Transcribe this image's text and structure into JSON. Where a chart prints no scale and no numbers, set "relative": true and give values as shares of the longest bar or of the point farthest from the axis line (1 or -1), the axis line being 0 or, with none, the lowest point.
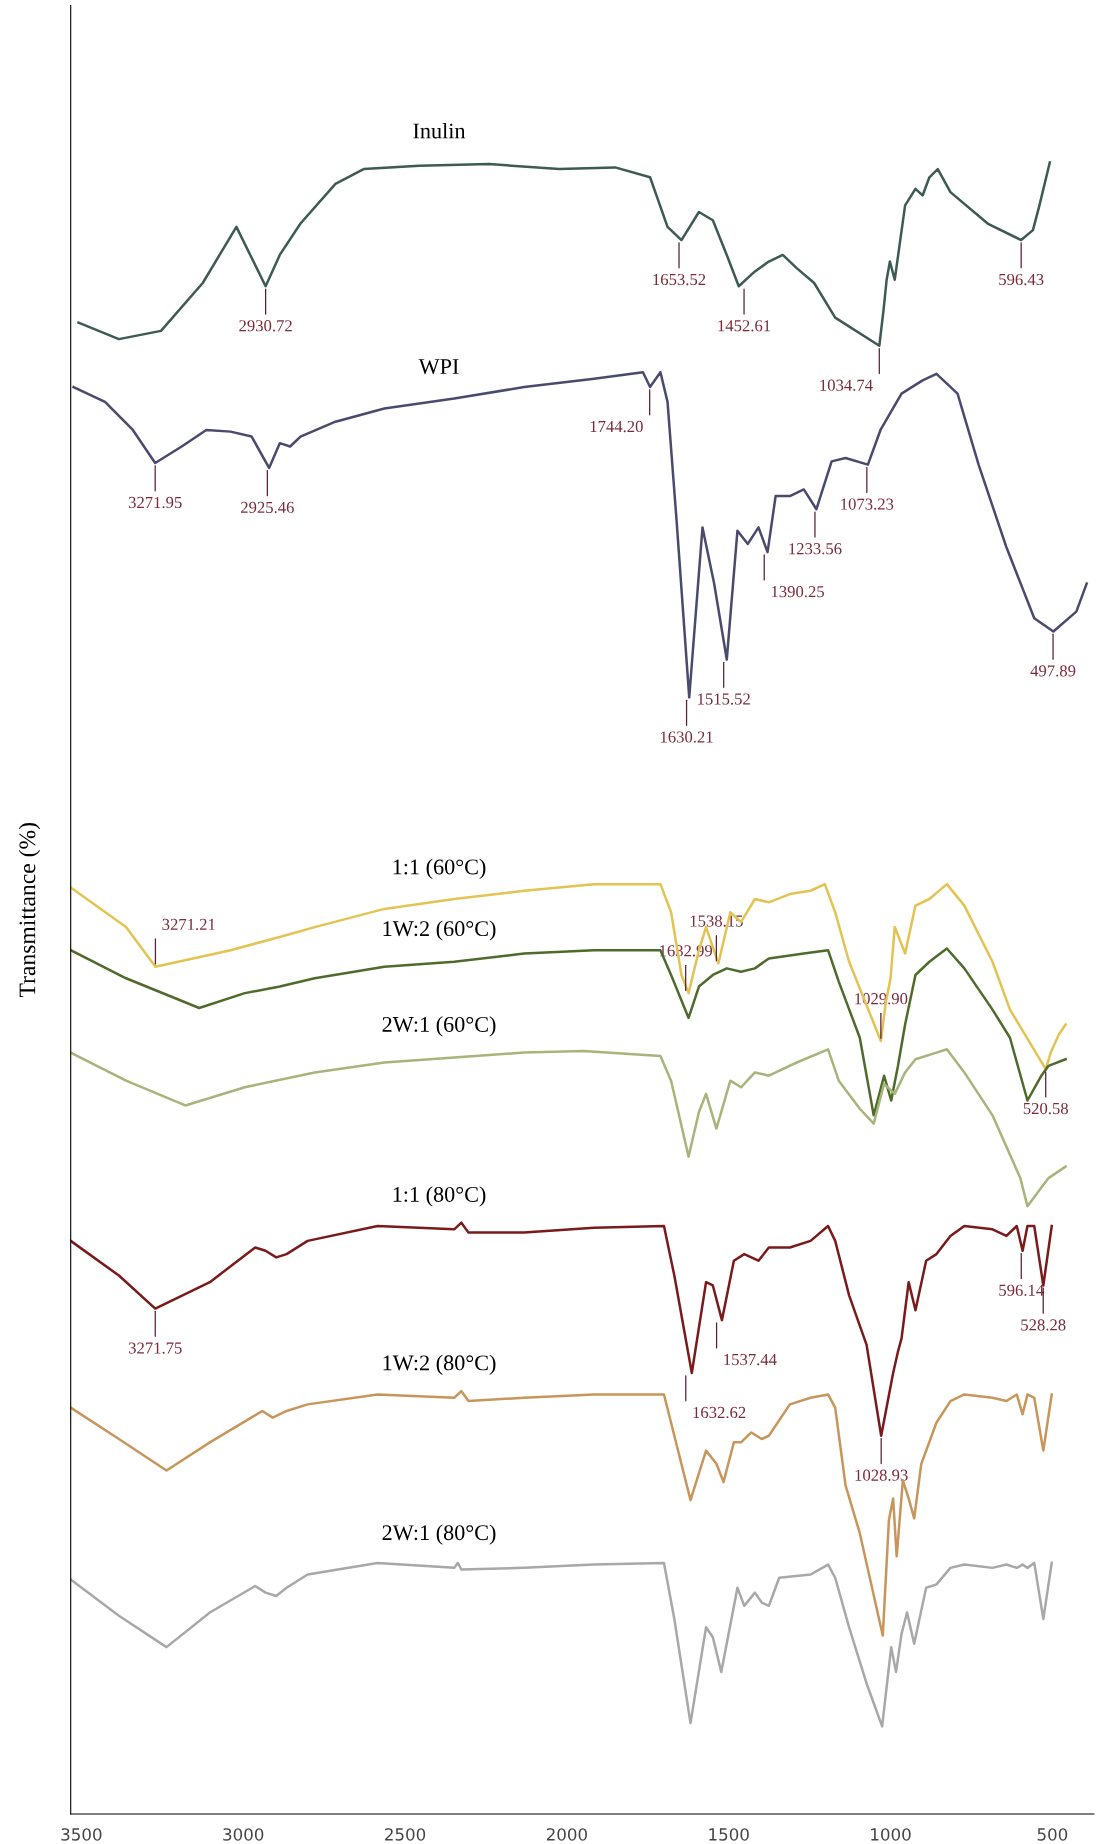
{
  "chart_data": {
    "type": "line",
    "relative": true,
    "ylabel": "Transmittance (%)",
    "xlim": [
      3533,
      372
    ],
    "xticks": [
      3500,
      3000,
      2500,
      2000,
      1500,
      1000,
      500
    ],
    "series": [
      {
        "name": "Inulin",
        "color": "#3d5a55",
        "x": [
          3509,
          3384,
          3254,
          3125,
          3021,
          2930.72,
          2887,
          2823,
          2715,
          2628,
          2456,
          2240,
          2024,
          1851,
          1743,
          1689,
          1646,
          1592,
          1549,
          1506,
          1469,
          1419,
          1376,
          1333,
          1290,
          1236,
          1171,
          1034.74,
          1022,
          1012,
          1002,
          987,
          955,
          923,
          901,
          880,
          854,
          815,
          700,
          596.43,
          560,
          540,
          508
        ],
        "values": [
          0.903,
          0.893,
          0.898,
          0.927,
          0.961,
          0.925,
          0.944,
          0.963,
          0.987,
          0.996,
          0.998,
          0.999,
          0.996,
          0.997,
          0.991,
          0.961,
          0.953,
          0.97,
          0.965,
          0.944,
          0.925,
          0.934,
          0.94,
          0.944,
          0.936,
          0.927,
          0.906,
          0.889,
          0.91,
          0.929,
          0.94,
          0.929,
          0.974,
          0.984,
          0.98,
          0.991,
          0.996,
          0.982,
          0.963,
          0.953,
          0.959,
          0.974,
          1.0
        ]
      },
      {
        "name": "WPI",
        "color": "#4a4a6e",
        "x": [
          3524,
          3427,
          3341,
          3272,
          3190,
          3114,
          3039,
          2974,
          2920,
          2887,
          2855,
          2823,
          2715,
          2564,
          2348,
          2132,
          1916,
          1765,
          1743,
          1711,
          1689,
          1661,
          1622,
          1581,
          1545,
          1506,
          1473,
          1441,
          1408,
          1380,
          1355,
          1311,
          1268,
          1229,
          1182,
          1139,
          1070,
          1031,
          966,
          901,
          858,
          793,
          728,
          642,
          556,
          497,
          426,
          394
        ],
        "values": [
          0.864,
          0.855,
          0.838,
          0.818,
          0.828,
          0.838,
          0.837,
          0.834,
          0.815,
          0.83,
          0.828,
          0.834,
          0.843,
          0.851,
          0.857,
          0.864,
          0.869,
          0.873,
          0.864,
          0.873,
          0.855,
          0.783,
          0.676,
          0.779,
          0.745,
          0.699,
          0.777,
          0.769,
          0.779,
          0.764,
          0.798,
          0.798,
          0.802,
          0.79,
          0.819,
          0.821,
          0.817,
          0.838,
          0.86,
          0.868,
          0.872,
          0.86,
          0.817,
          0.767,
          0.724,
          0.716,
          0.728,
          0.745
        ]
      },
      {
        "name": "1:1 (60°C)",
        "color": "#e3c352",
        "x": [
          3533,
          3362,
          3271.21,
          3039,
          2887,
          2779,
          2564,
          2348,
          2132,
          1916,
          1711,
          1678,
          1646,
          1624,
          1592,
          1570,
          1532,
          1495,
          1462,
          1419,
          1376,
          1311,
          1247,
          1203,
          1171,
          1128,
          1085,
          1029.9,
          1015,
          1000,
          987,
          955,
          923,
          880,
          826,
          772,
          685,
          631,
          520.58,
          505,
          480,
          459
        ],
        "values": [
          0.561,
          0.537,
          0.513,
          0.523,
          0.531,
          0.537,
          0.548,
          0.554,
          0.559,
          0.563,
          0.563,
          0.546,
          0.508,
          0.497,
          0.523,
          0.537,
          0.515,
          0.546,
          0.54,
          0.554,
          0.552,
          0.557,
          0.559,
          0.563,
          0.546,
          0.516,
          0.495,
          0.468,
          0.491,
          0.506,
          0.537,
          0.521,
          0.55,
          0.554,
          0.563,
          0.55,
          0.516,
          0.487,
          0.451,
          0.461,
          0.472,
          0.478
        ]
      },
      {
        "name": "1W:2 (60°C)",
        "color": "#4f6b2c",
        "x": [
          3533,
          3362,
          3136,
          2995,
          2887,
          2779,
          2564,
          2348,
          2132,
          1916,
          1711,
          1678,
          1624,
          1592,
          1549,
          1506,
          1462,
          1419,
          1376,
          1268,
          1193,
          1160,
          1095,
          1052,
          1020,
          998,
          977,
          955,
          923,
          880,
          826,
          772,
          685,
          631,
          577,
          534,
          512,
          459
        ],
        "values": [
          0.523,
          0.506,
          0.488,
          0.497,
          0.501,
          0.506,
          0.513,
          0.516,
          0.521,
          0.523,
          0.523,
          0.508,
          0.482,
          0.501,
          0.508,
          0.512,
          0.51,
          0.512,
          0.518,
          0.521,
          0.523,
          0.504,
          0.47,
          0.423,
          0.447,
          0.432,
          0.453,
          0.478,
          0.508,
          0.516,
          0.524,
          0.512,
          0.487,
          0.47,
          0.432,
          0.447,
          0.453,
          0.457
        ]
      },
      {
        "name": "2W:1 (60°C)",
        "color": "#a7b57a",
        "x": [
          3533,
          3362,
          3179,
          2995,
          2779,
          2564,
          2348,
          2132,
          1948,
          1711,
          1678,
          1624,
          1592,
          1570,
          1538,
          1495,
          1462,
          1419,
          1376,
          1290,
          1193,
          1160,
          1095,
          1052,
          1020,
          987,
          955,
          923,
          858,
          826,
          772,
          685,
          599,
          577,
          512,
          459
        ],
        "values": [
          0.461,
          0.444,
          0.429,
          0.44,
          0.449,
          0.455,
          0.458,
          0.461,
          0.462,
          0.459,
          0.444,
          0.398,
          0.425,
          0.436,
          0.415,
          0.444,
          0.44,
          0.449,
          0.447,
          0.455,
          0.463,
          0.444,
          0.427,
          0.418,
          0.442,
          0.436,
          0.449,
          0.457,
          0.461,
          0.463,
          0.449,
          0.423,
          0.385,
          0.368,
          0.385,
          0.392
        ]
      },
      {
        "name": "1:1 (80°C)",
        "color": "#7a1a1a",
        "x": [
          3533,
          3384,
          3271.75,
          3103,
          2963,
          2931,
          2898,
          2866,
          2801,
          2585,
          2348,
          2326,
          2304,
          2132,
          1916,
          1700,
          1668,
          1614,
          1570,
          1549,
          1521,
          1484,
          1452,
          1408,
          1376,
          1311,
          1247,
          1193,
          1171,
          1128,
          1074,
          1028.93,
          992,
          977,
          966,
          944,
          923,
          890,
          858,
          815,
          772,
          685,
          642,
          610,
          592,
          577,
          556,
          528,
          502
        ],
        "values": [
          0.347,
          0.326,
          0.306,
          0.322,
          0.343,
          0.341,
          0.337,
          0.339,
          0.347,
          0.356,
          0.354,
          0.358,
          0.352,
          0.352,
          0.355,
          0.356,
          0.326,
          0.267,
          0.322,
          0.32,
          0.299,
          0.335,
          0.339,
          0.335,
          0.343,
          0.343,
          0.347,
          0.356,
          0.347,
          0.314,
          0.284,
          0.229,
          0.267,
          0.28,
          0.288,
          0.322,
          0.305,
          0.335,
          0.339,
          0.35,
          0.356,
          0.354,
          0.35,
          0.356,
          0.341,
          0.356,
          0.356,
          0.32,
          0.356
        ]
      },
      {
        "name": "1W:2 (80°C)",
        "color": "#c8955a",
        "x": [
          3533,
          3384,
          3237,
          3103,
          2941,
          2909,
          2866,
          2801,
          2585,
          2348,
          2326,
          2304,
          2132,
          1916,
          1700,
          1668,
          1618,
          1570,
          1538,
          1516,
          1484,
          1462,
          1430,
          1398,
          1376,
          1311,
          1247,
          1193,
          1171,
          1139,
          1095,
          1024,
          1005,
          992,
          981,
          962,
          944,
          927,
          905,
          858,
          815,
          772,
          685,
          642,
          610,
          592,
          577,
          556,
          528,
          502
        ],
        "values": [
          0.246,
          0.227,
          0.208,
          0.225,
          0.244,
          0.24,
          0.244,
          0.248,
          0.254,
          0.252,
          0.256,
          0.25,
          0.252,
          0.254,
          0.254,
          0.229,
          0.19,
          0.22,
          0.212,
          0.201,
          0.225,
          0.225,
          0.231,
          0.227,
          0.229,
          0.248,
          0.252,
          0.254,
          0.246,
          0.199,
          0.17,
          0.108,
          0.178,
          0.191,
          0.156,
          0.202,
          0.191,
          0.179,
          0.212,
          0.237,
          0.25,
          0.254,
          0.252,
          0.25,
          0.254,
          0.242,
          0.254,
          0.252,
          0.22,
          0.254
        ]
      },
      {
        "name": "2W:1 (80°C)",
        "color": "#a8a8a8",
        "x": [
          3533,
          3384,
          3237,
          3103,
          2963,
          2931,
          2898,
          2866,
          2801,
          2585,
          2348,
          2337,
          2326,
          2132,
          1916,
          1700,
          1668,
          1618,
          1570,
          1549,
          1523,
          1473,
          1452,
          1419,
          1398,
          1376,
          1344,
          1247,
          1193,
          1171,
          1128,
          1074,
          1026,
          998,
          983,
          966,
          949,
          927,
          890,
          858,
          815,
          772,
          685,
          642,
          610,
          592,
          577,
          556,
          528,
          502
        ],
        "values": [
          0.142,
          0.12,
          0.101,
          0.122,
          0.138,
          0.134,
          0.132,
          0.137,
          0.145,
          0.152,
          0.149,
          0.152,
          0.148,
          0.149,
          0.151,
          0.152,
          0.118,
          0.055,
          0.113,
          0.107,
          0.086,
          0.137,
          0.126,
          0.134,
          0.128,
          0.126,
          0.143,
          0.145,
          0.151,
          0.143,
          0.113,
          0.079,
          0.053,
          0.101,
          0.086,
          0.109,
          0.122,
          0.103,
          0.137,
          0.139,
          0.149,
          0.151,
          0.149,
          0.151,
          0.149,
          0.151,
          0.149,
          0.152,
          0.118,
          0.152
        ]
      }
    ],
    "annotations": [
      {
        "text": "2930.72",
        "x": 2930.72,
        "y": 0.925
      },
      {
        "text": "1653.52",
        "x": 1653.52,
        "y": 0.953
      },
      {
        "text": "1452.61",
        "x": 1452.61,
        "y": 0.925
      },
      {
        "text": "1034.74",
        "x": 1034.74,
        "y": 0.889
      },
      {
        "text": "596.43",
        "x": 596.43,
        "y": 0.953
      },
      {
        "text": "3271.95",
        "x": 3271.95,
        "y": 0.818
      },
      {
        "text": "2925.46",
        "x": 2925.46,
        "y": 0.815
      },
      {
        "text": "1744.20",
        "x": 1744.2,
        "y": 0.864
      },
      {
        "text": "1630.21",
        "x": 1630.21,
        "y": 0.676
      },
      {
        "text": "1515.52",
        "x": 1515.52,
        "y": 0.699
      },
      {
        "text": "1390.25",
        "x": 1390.25,
        "y": 0.764
      },
      {
        "text": "1233.56",
        "x": 1233.56,
        "y": 0.79
      },
      {
        "text": "1073.23",
        "x": 1073.23,
        "y": 0.817
      },
      {
        "text": "497.89",
        "x": 497.89,
        "y": 0.716
      },
      {
        "text": "3271.21",
        "x": 3271.21,
        "y": 0.513
      },
      {
        "text": "1632.99",
        "x": 1632.99,
        "y": 0.497
      },
      {
        "text": "1538.15",
        "x": 1538.15,
        "y": 0.515
      },
      {
        "text": "1029.90",
        "x": 1029.9,
        "y": 0.468
      },
      {
        "text": "520.58",
        "x": 520.58,
        "y": 0.451
      },
      {
        "text": "3271.75",
        "x": 3271.75,
        "y": 0.306
      },
      {
        "text": "1632.62",
        "x": 1632.62,
        "y": 0.267
      },
      {
        "text": "1537.44",
        "x": 1537.44,
        "y": 0.299
      },
      {
        "text": "1028.93",
        "x": 1028.93,
        "y": 0.229
      },
      {
        "text": "596.14",
        "x": 596.14,
        "y": 0.341
      },
      {
        "text": "528.28",
        "x": 528.28,
        "y": 0.32
      }
    ]
  }
}
